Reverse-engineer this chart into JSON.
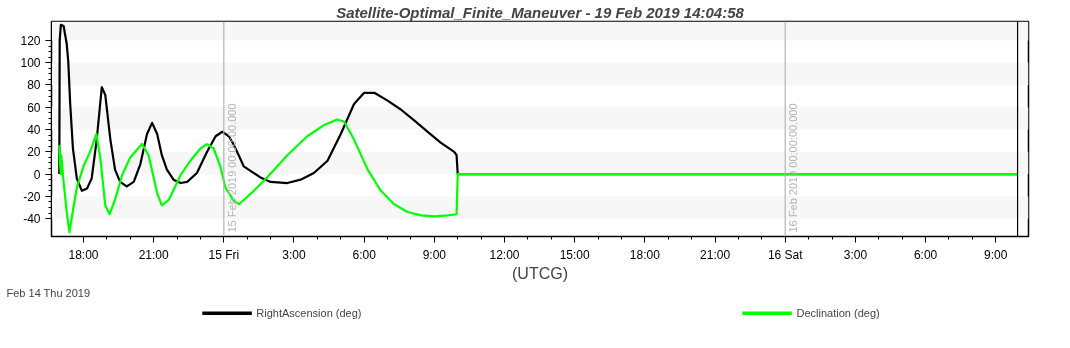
{
  "chart_data": {
    "type": "line",
    "title": "Satellite-Optimal_Finite_Maneuver - 19 Feb 2019 14:04:58",
    "xlabel": "(UTCG)",
    "annotations": [
      "Feb 14 Thu 2019"
    ],
    "xlim": [
      "2019-02-14T16:38",
      "2019-02-16T10:24"
    ],
    "xticks": [
      {
        "value": "2019-02-14T18:00",
        "label": "18:00"
      },
      {
        "value": "2019-02-14T21:00",
        "label": "21:00"
      },
      {
        "value": "2019-02-15T00:00",
        "label": "15 Fri"
      },
      {
        "value": "2019-02-15T03:00",
        "label": "3:00"
      },
      {
        "value": "2019-02-15T06:00",
        "label": "6:00"
      },
      {
        "value": "2019-02-15T09:00",
        "label": "9:00"
      },
      {
        "value": "2019-02-15T12:00",
        "label": "12:00"
      },
      {
        "value": "2019-02-15T15:00",
        "label": "15:00"
      },
      {
        "value": "2019-02-15T18:00",
        "label": "18:00"
      },
      {
        "value": "2019-02-15T21:00",
        "label": "21:00"
      },
      {
        "value": "2019-02-16T00:00",
        "label": "16 Sat"
      },
      {
        "value": "2019-02-16T03:00",
        "label": "3:00"
      },
      {
        "value": "2019-02-16T06:00",
        "label": "6:00"
      },
      {
        "value": "2019-02-16T09:00",
        "label": "9:00"
      }
    ],
    "ylim": [
      -56,
      137
    ],
    "yticks": [
      -40,
      -20,
      0,
      20,
      40,
      60,
      80,
      100,
      120
    ],
    "grid": false,
    "legend": "bottom",
    "line_style": "solid",
    "bands": [
      {
        "axis": "y",
        "from": 120,
        "to": 137,
        "color": "#f7f7f7"
      },
      {
        "axis": "y",
        "from": 80,
        "to": 100,
        "color": "#f7f7f7"
      },
      {
        "axis": "y",
        "from": 40,
        "to": 60,
        "color": "#f7f7f7"
      },
      {
        "axis": "y",
        "from": 0,
        "to": 20,
        "color": "#f7f7f7"
      },
      {
        "axis": "y",
        "from": -40,
        "to": -20,
        "color": "#f7f7f7"
      }
    ],
    "ref_lines": [
      {
        "axis": "x",
        "value": "2019-02-15T00:00",
        "label": "15 Feb 2019 00:00:00.000",
        "color": "#b4b4b4"
      },
      {
        "axis": "x",
        "value": "2019-02-16T00:00",
        "label": "16 Feb 2019 00:00:00.000",
        "color": "#b4b4b4"
      },
      {
        "axis": "x",
        "value": "2019-02-16T09:56",
        "label": null,
        "color": "#000000"
      }
    ],
    "series": [
      {
        "name": "RightAscension (deg)",
        "color": "#000000",
        "x": [
          "2019-02-14T16:58",
          "2019-02-14T16:59",
          "2019-02-14T17:02",
          "2019-02-14T17:09",
          "2019-02-14T17:17",
          "2019-02-14T17:21",
          "2019-02-14T17:26",
          "2019-02-14T17:33",
          "2019-02-14T17:43",
          "2019-02-14T17:56",
          "2019-02-14T18:09",
          "2019-02-14T18:21",
          "2019-02-14T18:34",
          "2019-02-14T18:47",
          "2019-02-14T18:56",
          "2019-02-14T19:09",
          "2019-02-14T19:21",
          "2019-02-14T19:34",
          "2019-02-14T19:51",
          "2019-02-14T20:09",
          "2019-02-14T20:26",
          "2019-02-14T20:43",
          "2019-02-14T20:56",
          "2019-02-14T21:09",
          "2019-02-14T21:21",
          "2019-02-14T21:34",
          "2019-02-14T21:51",
          "2019-02-14T22:09",
          "2019-02-14T22:26",
          "2019-02-14T22:51",
          "2019-02-14T23:17",
          "2019-02-14T23:39",
          "2019-02-14T23:56",
          "2019-02-15T00:13",
          "2019-02-15T00:26",
          "2019-02-15T00:34",
          "2019-02-15T00:51",
          "2019-02-15T01:34",
          "2019-02-15T02:00",
          "2019-02-15T02:43",
          "2019-02-15T03:17",
          "2019-02-15T03:51",
          "2019-02-15T04:26",
          "2019-02-15T05:00",
          "2019-02-15T05:34",
          "2019-02-15T06:00",
          "2019-02-15T06:26",
          "2019-02-15T07:00",
          "2019-02-15T07:34",
          "2019-02-15T08:09",
          "2019-02-15T08:43",
          "2019-02-15T09:17",
          "2019-02-15T09:51",
          "2019-02-15T09:57",
          "2019-02-15T10:00",
          "2019-02-16T09:56"
        ],
        "values": [
          0,
          120,
          134,
          133,
          117,
          101,
          63,
          23,
          -4,
          -15,
          -13,
          -4,
          31,
          78,
          71,
          31,
          4,
          -7,
          -11,
          -7,
          9,
          36,
          46,
          36,
          17,
          4,
          -5,
          -8,
          -7,
          1,
          20,
          34,
          38,
          34,
          26,
          20,
          7,
          -3,
          -7,
          -8,
          -5,
          1,
          12,
          36,
          63,
          73,
          73,
          66,
          58,
          48,
          38,
          28,
          20,
          17,
          0,
          0
        ]
      },
      {
        "name": "Declination (deg)",
        "color": "#00ff00",
        "x": [
          "2019-02-14T16:58",
          "2019-02-14T17:00",
          "2019-02-14T17:02",
          "2019-02-14T17:03",
          "2019-02-14T17:09",
          "2019-02-14T17:17",
          "2019-02-14T17:24",
          "2019-02-14T17:30",
          "2019-02-14T17:43",
          "2019-02-14T18:00",
          "2019-02-14T18:17",
          "2019-02-14T18:33",
          "2019-02-14T18:43",
          "2019-02-14T18:56",
          "2019-02-14T19:07",
          "2019-02-14T19:21",
          "2019-02-14T19:39",
          "2019-02-14T20:00",
          "2019-02-14T20:30",
          "2019-02-14T20:47",
          "2019-02-14T21:09",
          "2019-02-14T21:21",
          "2019-02-14T21:39",
          "2019-02-14T22:09",
          "2019-02-14T22:34",
          "2019-02-14T23:00",
          "2019-02-14T23:17",
          "2019-02-14T23:34",
          "2019-02-14T23:51",
          "2019-02-15T00:04",
          "2019-02-15T00:26",
          "2019-02-15T00:39",
          "2019-02-15T01:17",
          "2019-02-15T01:51",
          "2019-02-15T02:43",
          "2019-02-15T03:34",
          "2019-02-15T04:17",
          "2019-02-15T04:51",
          "2019-02-15T05:09",
          "2019-02-15T05:34",
          "2019-02-15T06:09",
          "2019-02-15T06:43",
          "2019-02-15T07:17",
          "2019-02-15T07:51",
          "2019-02-15T08:26",
          "2019-02-15T09:00",
          "2019-02-15T09:34",
          "2019-02-15T09:57",
          "2019-02-15T10:00",
          "2019-02-16T09:56"
        ],
        "values": [
          26,
          9,
          0,
          17,
          -7,
          -34,
          -52,
          -39,
          -12,
          7,
          20,
          36,
          15,
          -28,
          -36,
          -23,
          -1,
          15,
          27,
          17,
          -17,
          -28,
          -23,
          -1,
          12,
          23,
          27,
          23,
          7,
          -12,
          -24,
          -27,
          -15,
          -3,
          17,
          34,
          44,
          49,
          47,
          31,
          4,
          -15,
          -27,
          -34,
          -37,
          -38,
          -37,
          -36,
          0,
          0
        ]
      }
    ]
  }
}
